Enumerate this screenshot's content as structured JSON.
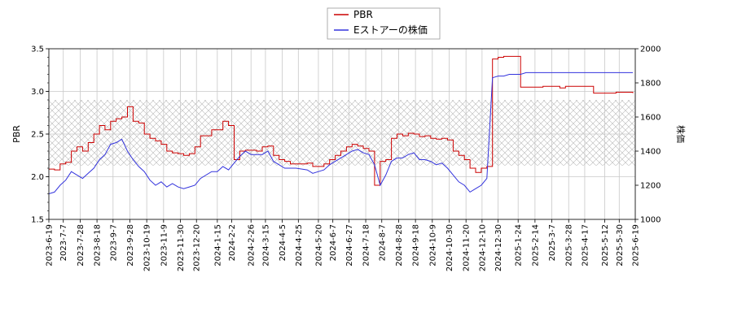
{
  "chart_data": {
    "type": "line",
    "title": "",
    "legend": {
      "placement": "top-center",
      "entries": [
        {
          "label": "PBR",
          "color": "#cc0000"
        },
        {
          "label": "Eストアーの株価",
          "color": "#3333dd"
        }
      ]
    },
    "ylabel_left": "PBR",
    "ylabel_right": "株価",
    "ylim_left": [
      1.5,
      3.5
    ],
    "ylim_right": [
      1000,
      2000
    ],
    "yticks_left": [
      "1.5",
      "2.0",
      "2.5",
      "3.0",
      "3.5"
    ],
    "yticks_right": [
      "1000",
      "1200",
      "1400",
      "1600",
      "1800",
      "2000"
    ],
    "xlim": [
      "2023-06-19",
      "2025-06-19"
    ],
    "xtick_labels": [
      "2023-6-19",
      "2023-7-7",
      "2023-7-28",
      "2023-8-18",
      "2023-9-7",
      "2023-9-28",
      "2023-10-19",
      "2023-11-9",
      "2023-11-30",
      "2023-12-20",
      "2024-1-15",
      "2024-2-2",
      "2024-2-26",
      "2024-3-15",
      "2024-4-5",
      "2024-4-25",
      "2024-5-20",
      "2024-6-7",
      "2024-6-27",
      "2024-7-18",
      "2024-8-7",
      "2024-8-28",
      "2024-9-18",
      "2024-10-9",
      "2024-10-30",
      "2024-11-20",
      "2024-12-10",
      "2024-12-30",
      "2025-1-24",
      "2025-2-14",
      "2025-3-7",
      "2025-3-28",
      "2025-4-17",
      "2025-5-12",
      "2025-5-30",
      "2025-6-19"
    ],
    "grid": true,
    "band": {
      "axis": "left",
      "from": 2.13,
      "to": 2.9,
      "style": "crosshatch"
    },
    "series": [
      {
        "name": "PBR",
        "axis": "left",
        "color": "#cc0000",
        "x": [
          "2023-06-19",
          "2023-06-26",
          "2023-07-03",
          "2023-07-10",
          "2023-07-17",
          "2023-07-24",
          "2023-07-31",
          "2023-08-07",
          "2023-08-14",
          "2023-08-21",
          "2023-08-28",
          "2023-09-04",
          "2023-09-11",
          "2023-09-18",
          "2023-09-25",
          "2023-10-02",
          "2023-10-09",
          "2023-10-16",
          "2023-10-23",
          "2023-10-30",
          "2023-11-06",
          "2023-11-13",
          "2023-11-20",
          "2023-11-27",
          "2023-12-04",
          "2023-12-11",
          "2023-12-18",
          "2023-12-25",
          "2024-01-08",
          "2024-01-15",
          "2024-01-22",
          "2024-01-29",
          "2024-02-05",
          "2024-02-12",
          "2024-02-19",
          "2024-02-26",
          "2024-03-04",
          "2024-03-11",
          "2024-03-18",
          "2024-03-25",
          "2024-04-01",
          "2024-04-08",
          "2024-04-15",
          "2024-04-22",
          "2024-05-06",
          "2024-05-13",
          "2024-05-20",
          "2024-05-27",
          "2024-06-03",
          "2024-06-10",
          "2024-06-17",
          "2024-06-24",
          "2024-07-01",
          "2024-07-08",
          "2024-07-15",
          "2024-07-22",
          "2024-07-29",
          "2024-08-05",
          "2024-08-12",
          "2024-08-19",
          "2024-08-26",
          "2024-09-02",
          "2024-09-09",
          "2024-09-16",
          "2024-09-23",
          "2024-09-30",
          "2024-10-07",
          "2024-10-14",
          "2024-10-21",
          "2024-10-28",
          "2024-11-04",
          "2024-11-11",
          "2024-11-18",
          "2024-11-25",
          "2024-12-02",
          "2024-12-09",
          "2024-12-16",
          "2024-12-23",
          "2024-12-30",
          "2025-01-06",
          "2025-01-13",
          "2025-01-20",
          "2025-01-27",
          "2025-02-03",
          "2025-02-10",
          "2025-02-17",
          "2025-02-24",
          "2025-03-03",
          "2025-03-10",
          "2025-03-17",
          "2025-03-24",
          "2025-03-31",
          "2025-04-07",
          "2025-04-14",
          "2025-04-21",
          "2025-04-28",
          "2025-05-05",
          "2025-05-12",
          "2025-05-19",
          "2025-05-26",
          "2025-06-02",
          "2025-06-09",
          "2025-06-16"
        ],
        "y": [
          2.09,
          2.08,
          2.15,
          2.17,
          2.3,
          2.35,
          2.3,
          2.4,
          2.5,
          2.6,
          2.55,
          2.65,
          2.68,
          2.7,
          2.82,
          2.65,
          2.63,
          2.5,
          2.45,
          2.42,
          2.38,
          2.3,
          2.28,
          2.27,
          2.25,
          2.27,
          2.35,
          2.48,
          2.55,
          2.55,
          2.65,
          2.6,
          2.2,
          2.3,
          2.31,
          2.31,
          2.3,
          2.35,
          2.36,
          2.25,
          2.2,
          2.18,
          2.15,
          2.15,
          2.16,
          2.12,
          2.12,
          2.15,
          2.2,
          2.25,
          2.3,
          2.35,
          2.38,
          2.36,
          2.33,
          2.3,
          1.9,
          2.18,
          2.2,
          2.45,
          2.5,
          2.48,
          2.51,
          2.5,
          2.47,
          2.48,
          2.45,
          2.44,
          2.45,
          2.43,
          2.3,
          2.25,
          2.2,
          2.1,
          2.05,
          2.1,
          2.12,
          3.38,
          3.4,
          3.41,
          3.41,
          3.41,
          3.05,
          3.05,
          3.05,
          3.05,
          3.06,
          3.06,
          3.06,
          3.04,
          3.06,
          3.06,
          3.06,
          3.06,
          3.06,
          2.98,
          2.98,
          2.98,
          2.98,
          2.99,
          2.99,
          2.99,
          2.98
        ]
      },
      {
        "name": "Eストアーの株価",
        "axis": "right",
        "color": "#3333dd",
        "x": [
          "2023-06-19",
          "2023-06-26",
          "2023-07-03",
          "2023-07-10",
          "2023-07-17",
          "2023-07-24",
          "2023-07-31",
          "2023-08-07",
          "2023-08-14",
          "2023-08-21",
          "2023-08-28",
          "2023-09-04",
          "2023-09-11",
          "2023-09-18",
          "2023-09-25",
          "2023-10-02",
          "2023-10-09",
          "2023-10-16",
          "2023-10-23",
          "2023-10-30",
          "2023-11-06",
          "2023-11-13",
          "2023-11-20",
          "2023-11-27",
          "2023-12-04",
          "2023-12-11",
          "2023-12-18",
          "2023-12-25",
          "2024-01-08",
          "2024-01-15",
          "2024-01-22",
          "2024-01-29",
          "2024-02-05",
          "2024-02-12",
          "2024-02-19",
          "2024-02-26",
          "2024-03-04",
          "2024-03-11",
          "2024-03-18",
          "2024-03-25",
          "2024-04-01",
          "2024-04-08",
          "2024-04-15",
          "2024-04-22",
          "2024-05-06",
          "2024-05-13",
          "2024-05-20",
          "2024-05-27",
          "2024-06-03",
          "2024-06-10",
          "2024-06-17",
          "2024-06-24",
          "2024-07-01",
          "2024-07-08",
          "2024-07-15",
          "2024-07-22",
          "2024-07-29",
          "2024-08-05",
          "2024-08-12",
          "2024-08-19",
          "2024-08-26",
          "2024-09-02",
          "2024-09-09",
          "2024-09-16",
          "2024-09-23",
          "2024-09-30",
          "2024-10-07",
          "2024-10-14",
          "2024-10-21",
          "2024-10-28",
          "2024-11-04",
          "2024-11-11",
          "2024-11-18",
          "2024-11-25",
          "2024-12-02",
          "2024-12-09",
          "2024-12-16",
          "2024-12-23",
          "2024-12-30",
          "2025-01-06",
          "2025-01-13",
          "2025-01-20",
          "2025-01-27",
          "2025-02-03",
          "2025-02-10",
          "2025-02-17",
          "2025-02-24",
          "2025-03-03",
          "2025-03-10",
          "2025-03-17",
          "2025-03-24",
          "2025-03-31",
          "2025-04-07",
          "2025-04-14",
          "2025-04-21",
          "2025-04-28",
          "2025-05-05",
          "2025-05-12",
          "2025-05-19",
          "2025-05-26",
          "2025-06-02",
          "2025-06-09",
          "2025-06-16"
        ],
        "y": [
          1150,
          1160,
          1200,
          1230,
          1280,
          1260,
          1240,
          1270,
          1300,
          1350,
          1380,
          1440,
          1450,
          1470,
          1400,
          1350,
          1310,
          1280,
          1230,
          1200,
          1220,
          1190,
          1210,
          1190,
          1180,
          1190,
          1200,
          1240,
          1280,
          1280,
          1310,
          1290,
          1330,
          1370,
          1400,
          1380,
          1380,
          1380,
          1400,
          1340,
          1320,
          1300,
          1300,
          1300,
          1290,
          1270,
          1280,
          1290,
          1320,
          1340,
          1360,
          1380,
          1400,
          1410,
          1390,
          1380,
          1320,
          1200,
          1260,
          1340,
          1360,
          1360,
          1380,
          1390,
          1350,
          1350,
          1340,
          1320,
          1330,
          1300,
          1260,
          1220,
          1200,
          1160,
          1180,
          1200,
          1240,
          1830,
          1840,
          1840,
          1850,
          1850,
          1850,
          1860,
          1860,
          1860,
          1860,
          1860,
          1860,
          1860,
          1860,
          1860,
          1860,
          1860,
          1860,
          1860,
          1860,
          1860,
          1860,
          1860,
          1860,
          1860,
          1860
        ]
      }
    ]
  }
}
